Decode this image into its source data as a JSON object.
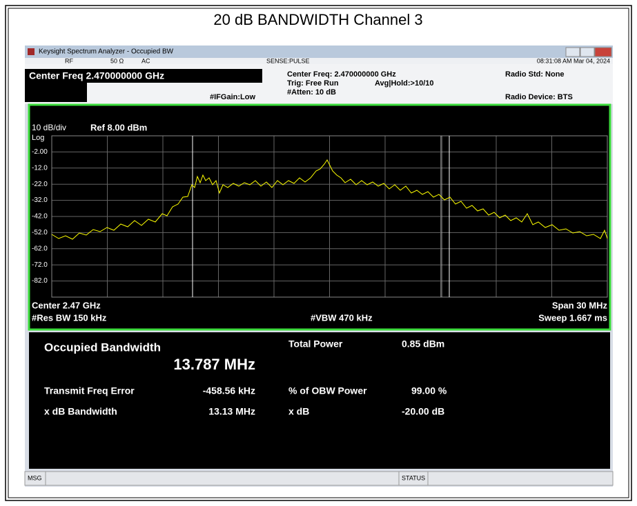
{
  "page_title": "20 dB BANDWIDTH Channel 3",
  "window": {
    "title": "Keysight Spectrum Analyzer - Occupied BW",
    "status_row": {
      "rf": "RF",
      "impedance": "50 Ω",
      "coupling": "AC",
      "sense": "SENSE:PULSE",
      "timestamp": "08:31:08 AM Mar 04, 2024"
    }
  },
  "header": {
    "center_freq": "Center Freq 2.470000000 GHz",
    "if_gain": "#IFGain:Low",
    "center_freq_info": "Center Freq: 2.470000000 GHz",
    "trig": "Trig: Free Run",
    "atten": "#Atten: 10 dB",
    "avg_hold": "Avg|Hold:>10/10",
    "radio_std": "Radio Std: None",
    "radio_device": "Radio Device: BTS"
  },
  "graph": {
    "scale": "10 dB/div",
    "ref": "Ref 8.00 dBm",
    "log": "Log",
    "y_labels": [
      "-2.00",
      "-12.0",
      "-22.0",
      "-32.0",
      "-42.0",
      "-52.0",
      "-62.0",
      "-72.0",
      "-82.0"
    ],
    "center": "Center  2.47 GHz",
    "res_bw": "#Res BW  150 kHz",
    "vbw": "#VBW  470 kHz",
    "span": "Span 30 MHz",
    "sweep": "Sweep  1.667 ms"
  },
  "results": {
    "heading": "Occupied Bandwidth",
    "obw": "13.787 MHz",
    "total_power_label": "Total Power",
    "total_power": "0.85 dBm",
    "freq_error_label": "Transmit Freq Error",
    "freq_error": "-458.56 kHz",
    "obw_power_label": "% of OBW Power",
    "obw_power": "99.00 %",
    "xdb_bw_label": "x dB Bandwidth",
    "xdb_bw": "13.13 MHz",
    "xdb_label": "x dB",
    "xdb": "-20.00 dB"
  },
  "status_bar": {
    "msg": "MSG",
    "status": "STATUS"
  }
}
